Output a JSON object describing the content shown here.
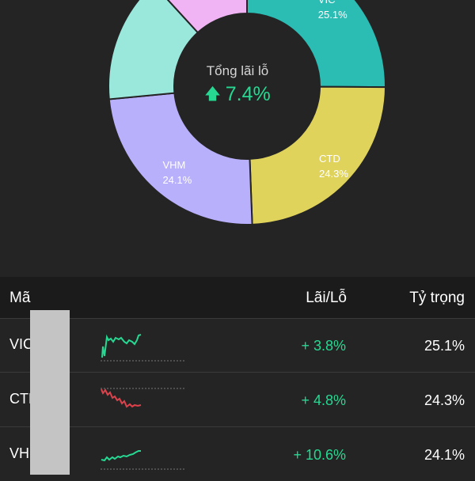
{
  "summary": {
    "title": "Tổng lãi lỗ",
    "arrow": "🡅",
    "value": "7.4%",
    "value_color": "#27d892"
  },
  "chart_data": {
    "type": "pie",
    "slices": [
      {
        "label": "VIC",
        "percent_text": "25.1%",
        "value": 25.1,
        "color": "#2bbcb4"
      },
      {
        "label": "CTD",
        "percent_text": "24.3%",
        "value": 24.3,
        "color": "#e0d35c"
      },
      {
        "label": "VHM",
        "percent_text": "24.1%",
        "value": 24.1,
        "color": "#b8b0fb"
      },
      {
        "label": "",
        "percent_text": "",
        "value": 14.7,
        "color": "#9ae8dc"
      },
      {
        "label": "",
        "percent_text": "",
        "value": 11.8,
        "color": "#f0b4f4"
      }
    ]
  },
  "table": {
    "headers": {
      "code": "Mã",
      "pl": "Lãi/Lỗ",
      "weight": "Tỷ trọng"
    },
    "rows": [
      {
        "code": "VIC",
        "pl": "+ 3.8%",
        "weight": "25.1%",
        "trend": "up",
        "trend_color": "#27d892"
      },
      {
        "code": "CTD",
        "pl": "+ 4.8%",
        "weight": "24.3%",
        "trend": "down",
        "trend_color": "#e0404a"
      },
      {
        "code": "VHM",
        "pl": "+ 10.6%",
        "weight": "24.1%",
        "trend": "up",
        "trend_color": "#27d892"
      }
    ]
  },
  "colors": {
    "background": "#242424",
    "header_bg": "#1b1b1b",
    "positive": "#27d892",
    "negative": "#e0404a"
  }
}
